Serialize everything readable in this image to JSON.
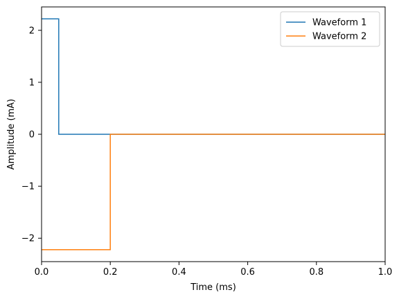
{
  "chart_data": {
    "type": "line",
    "title": "",
    "xlabel": "Time (ms)",
    "ylabel": "Amplitude (mA)",
    "xlim": [
      0.0,
      1.0
    ],
    "ylim": [
      -2.45,
      2.45
    ],
    "x_ticks": [
      0.0,
      0.2,
      0.4,
      0.6,
      0.8,
      1.0
    ],
    "x_tick_labels": [
      "0.0",
      "0.2",
      "0.4",
      "0.6",
      "0.8",
      "1.0"
    ],
    "y_ticks": [
      -2,
      -1,
      0,
      1,
      2
    ],
    "y_tick_labels": [
      "−2",
      "−1",
      "0",
      "1",
      "2"
    ],
    "grid": false,
    "legend_position": "top-right",
    "series": [
      {
        "name": "Waveform 1",
        "color": "#1f77b4",
        "x": [
          0.0,
          0.05,
          0.05,
          1.0
        ],
        "y": [
          2.22,
          2.22,
          0.0,
          0.0
        ]
      },
      {
        "name": "Waveform 2",
        "color": "#ff7f0e",
        "x": [
          0.0,
          0.2,
          0.2,
          1.0
        ],
        "y": [
          -2.22,
          -2.22,
          0.0,
          0.0
        ]
      }
    ]
  }
}
